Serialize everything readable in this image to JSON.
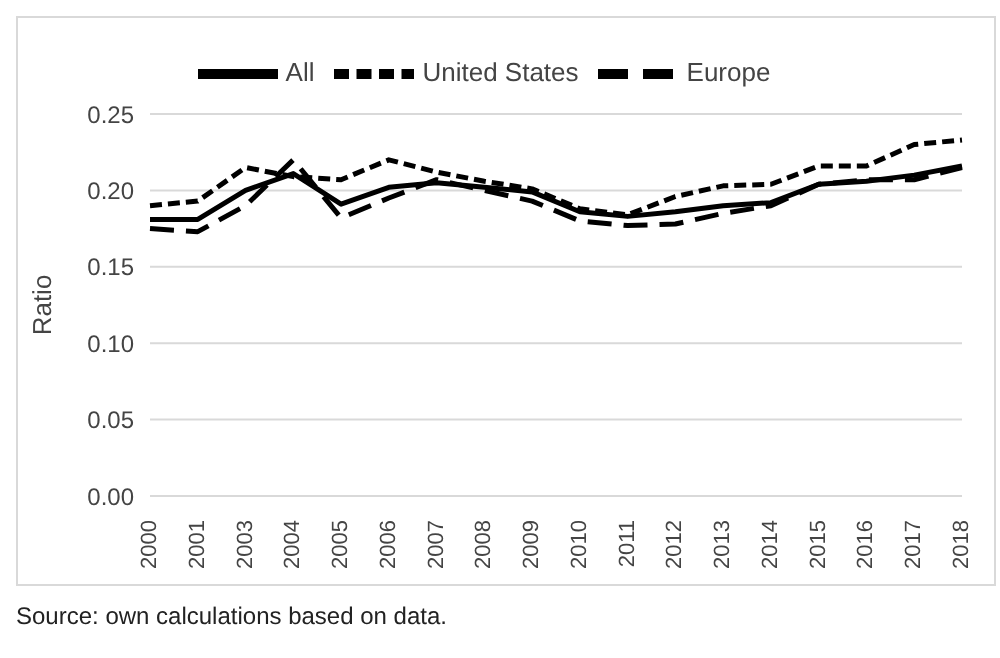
{
  "chart_data": {
    "type": "line",
    "ylabel": "Ratio",
    "categories": [
      "2000",
      "2001",
      "2003",
      "2004",
      "2005",
      "2006",
      "2007",
      "2008",
      "2009",
      "2010",
      "2011",
      "2012",
      "2013",
      "2014",
      "2015",
      "2016",
      "2017",
      "2018"
    ],
    "series": [
      {
        "name": "All",
        "color": "#000000",
        "line_style": "solid",
        "values": [
          0.181,
          0.181,
          0.2,
          0.211,
          0.191,
          0.202,
          0.205,
          0.202,
          0.199,
          0.186,
          0.183,
          0.186,
          0.19,
          0.192,
          0.204,
          0.206,
          0.21,
          0.216
        ]
      },
      {
        "name": "United States",
        "color": "#000000",
        "line_style": "dotted",
        "values": [
          0.19,
          0.193,
          0.215,
          0.209,
          0.207,
          0.22,
          0.212,
          0.206,
          0.201,
          0.188,
          0.184,
          0.196,
          0.203,
          0.204,
          0.216,
          0.216,
          0.23,
          0.233
        ]
      },
      {
        "name": "Europe",
        "color": "#000000",
        "line_style": "dashed",
        "values": [
          0.175,
          0.173,
          0.19,
          0.22,
          0.182,
          0.195,
          0.207,
          0.2,
          0.193,
          0.18,
          0.177,
          0.178,
          0.185,
          0.19,
          0.204,
          0.207,
          0.207,
          0.215
        ]
      }
    ],
    "ylim": [
      0,
      0.25
    ],
    "yticks": [
      {
        "value": 0,
        "label": "0.00"
      },
      {
        "value": 0.05,
        "label": "0.05"
      },
      {
        "value": 0.1,
        "label": "0.10"
      },
      {
        "value": 0.15,
        "label": "0.15"
      },
      {
        "value": 0.2,
        "label": "0.20"
      },
      {
        "value": 0.25,
        "label": "0.25"
      }
    ],
    "grid": "y",
    "legend": "top",
    "marker": "none",
    "annotations": [
      "Source: own calculations based on data."
    ]
  }
}
